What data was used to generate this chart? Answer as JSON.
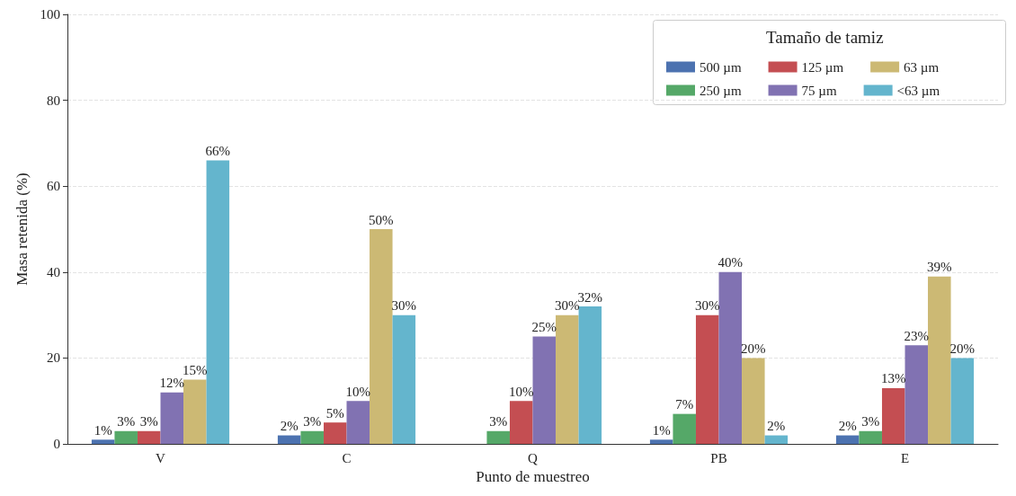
{
  "chart_data": {
    "type": "bar",
    "xlabel": "Punto de muestreo",
    "ylabel": "Masa retenida (%)",
    "legend_title": "Tamaño de tamiz",
    "categories": [
      "V",
      "C",
      "Q",
      "PB",
      "E"
    ],
    "series": [
      {
        "name": "500 µm",
        "color": "#4c72b0",
        "values": [
          1,
          2,
          0,
          1,
          2
        ],
        "value_labels": [
          "1%",
          "2%",
          null,
          "1%",
          "2%"
        ]
      },
      {
        "name": "250 µm",
        "color": "#55a868",
        "values": [
          3,
          3,
          3,
          7,
          3
        ],
        "value_labels": [
          "3%",
          "3%",
          "3%",
          "7%",
          "3%"
        ]
      },
      {
        "name": "125 µm",
        "color": "#c44e52",
        "values": [
          3,
          5,
          10,
          30,
          13
        ],
        "value_labels": [
          "3%",
          "5%",
          "10%",
          "30%",
          "13%"
        ]
      },
      {
        "name": "75 µm",
        "color": "#8172b2",
        "values": [
          12,
          10,
          25,
          40,
          23
        ],
        "value_labels": [
          "12%",
          "10%",
          "25%",
          "40%",
          "23%"
        ]
      },
      {
        "name": "63 µm",
        "color": "#ccb974",
        "values": [
          15,
          50,
          30,
          20,
          39
        ],
        "value_labels": [
          "15%",
          "50%",
          "30%",
          "20%",
          "39%"
        ]
      },
      {
        "name": "<63 µm",
        "color": "#64b5cd",
        "values": [
          66,
          30,
          32,
          2,
          20
        ],
        "value_labels": [
          "66%",
          "30%",
          "32%",
          "2%",
          "20%"
        ]
      }
    ],
    "ylim": [
      0,
      100
    ],
    "yticks": [
      0,
      20,
      40,
      60,
      80,
      100
    ],
    "grid": "y",
    "legend": "top right"
  }
}
